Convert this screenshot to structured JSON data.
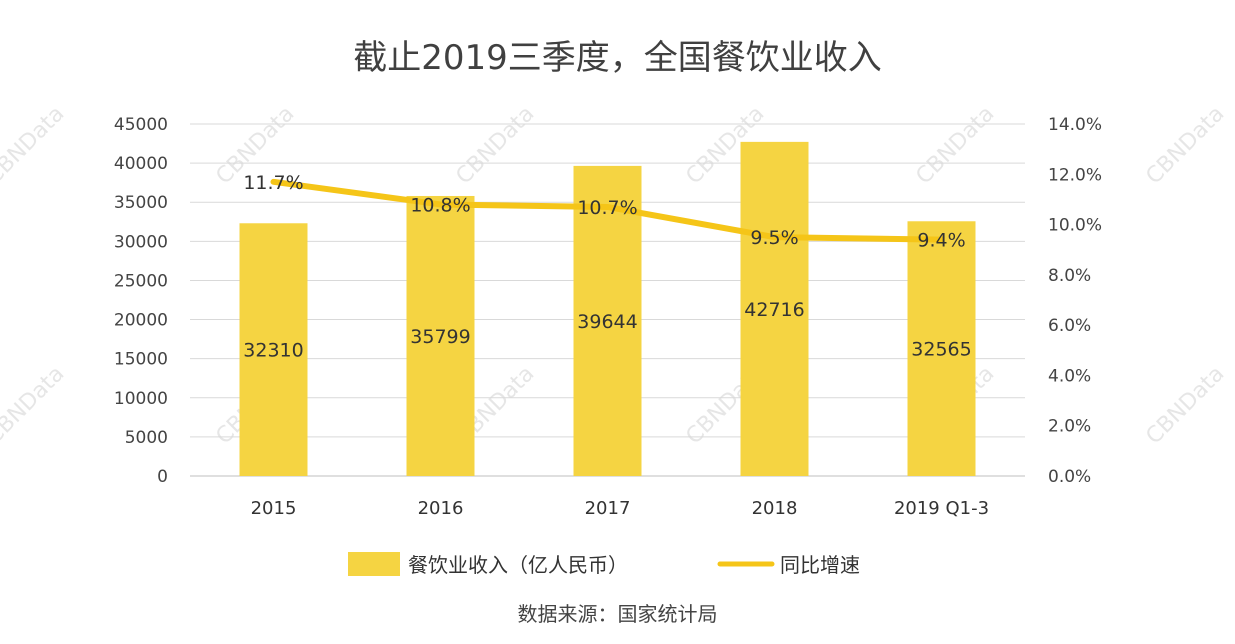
{
  "chart_data": {
    "type": "bar+line",
    "title": "截止2019三季度，全国餐饮业收入",
    "categories": [
      "2015",
      "2016",
      "2017",
      "2018",
      "2019 Q1-3"
    ],
    "series": [
      {
        "name": "餐饮业收入（亿人民币）",
        "type": "bar",
        "axis": "left",
        "values": [
          32310,
          35799,
          39644,
          42716,
          32565
        ],
        "labels": [
          "32310",
          "35799",
          "39644",
          "42716",
          "32565"
        ],
        "color": "#f5d442"
      },
      {
        "name": "同比增速",
        "type": "line",
        "axis": "right",
        "values": [
          11.7,
          10.8,
          10.7,
          9.5,
          9.4
        ],
        "labels": [
          "11.7%",
          "10.8%",
          "10.7%",
          "9.5%",
          "9.4%"
        ],
        "color": "#f5c518"
      }
    ],
    "y_left": {
      "ylim": [
        0,
        45000
      ],
      "ticks": [
        "0",
        "5000",
        "10000",
        "15000",
        "20000",
        "25000",
        "30000",
        "35000",
        "40000",
        "45000"
      ]
    },
    "y_right": {
      "ylim": [
        0,
        14
      ],
      "ticks": [
        "0.0%",
        "2.0%",
        "4.0%",
        "6.0%",
        "8.0%",
        "10.0%",
        "12.0%",
        "14.0%"
      ]
    },
    "grid": true,
    "legend": "bottom",
    "source": "数据来源：国家统计局",
    "watermark": "CBNData"
  }
}
